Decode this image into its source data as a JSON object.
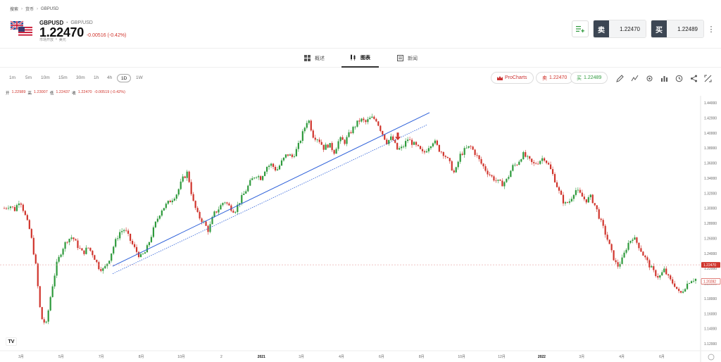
{
  "breadcrumb": {
    "items": [
      "搜索",
      "货币",
      "GBPUSD"
    ]
  },
  "header": {
    "symbol": "GBPUSD",
    "pair": "GBP/USD",
    "price": "1.22470",
    "change": "-0.00516 (-0.42%)",
    "market_status": "市场开放",
    "currency": "美元",
    "sell_label": "卖",
    "sell_price": "1.22470",
    "buy_label": "买",
    "buy_price": "1.22489",
    "icons": {
      "list": "list-add-icon",
      "more": "kebab-icon",
      "flag": "gb-us-flag-icon"
    }
  },
  "tabs": [
    {
      "label": "概述",
      "icon": "grid-icon"
    },
    {
      "label": "图表",
      "icon": "candles-icon"
    },
    {
      "label": "新闻",
      "icon": "news-icon"
    }
  ],
  "timeframes": [
    "1m",
    "5m",
    "10m",
    "15m",
    "30m",
    "1h",
    "4h",
    "1D",
    "1W"
  ],
  "active_timeframe": "1D",
  "toolbar": {
    "prochart_label": "ProCharts",
    "sell_label": "卖",
    "sell_price": "1.22470",
    "buy_label": "买",
    "buy_price": "1.22489",
    "tools": [
      "pencil-icon",
      "indicators-icon",
      "settings-icon",
      "chart-type-icon",
      "clock-icon",
      "share-icon",
      "fullscreen-icon"
    ]
  },
  "ohlc": {
    "open_label": "开",
    "open": "1.22989",
    "high_label": "高",
    "high": "1.23007",
    "low_label": "低",
    "low": "1.22437",
    "close_label": "收",
    "close": "1.22470",
    "change": "-0.00519 (-0.42%)"
  },
  "chart_data": {
    "type": "candlestick",
    "yticks": [
      "1.44000",
      "1.42000",
      "1.40000",
      "1.38000",
      "1.36000",
      "1.34000",
      "1.32000",
      "1.30000",
      "1.28000",
      "1.26000",
      "1.24000",
      "1.22000",
      "1.20000",
      "1.18000",
      "1.16000",
      "1.14000",
      "1.12000"
    ],
    "ylim": [
      1.12,
      1.44
    ],
    "xticks": [
      "3月",
      "5月",
      "7月",
      "8月",
      "10月",
      "2",
      "2021",
      "3月",
      "4月",
      "6月",
      "8月",
      "10月",
      "12月",
      "2022",
      "3月",
      "4月",
      "6月"
    ],
    "bold_xticks": [
      "2021",
      "2022"
    ],
    "current_price": "1.22470",
    "secondary_price": "1.20282",
    "colors": {
      "up": "#2e9a3c",
      "down": "#d0342c",
      "trend": "#2b5fd9"
    },
    "close_path": [
      1.3,
      1.304,
      1.298,
      1.312,
      1.29,
      1.268,
      1.225,
      1.155,
      1.145,
      1.19,
      1.225,
      1.245,
      1.258,
      1.262,
      1.25,
      1.24,
      1.248,
      1.238,
      1.222,
      1.218,
      1.232,
      1.252,
      1.268,
      1.272,
      1.258,
      1.245,
      1.235,
      1.242,
      1.262,
      1.282,
      1.298,
      1.305,
      1.312,
      1.32,
      1.338,
      1.348,
      1.31,
      1.29,
      1.282,
      1.27,
      1.292,
      1.3,
      1.31,
      1.302,
      1.296,
      1.31,
      1.322,
      1.335,
      1.345,
      1.34,
      1.355,
      1.358,
      1.35,
      1.362,
      1.372,
      1.368,
      1.38,
      1.4,
      1.42,
      1.396,
      1.392,
      1.38,
      1.385,
      1.375,
      1.392,
      1.388,
      1.4,
      1.41,
      1.418,
      1.414,
      1.42,
      1.418,
      1.402,
      1.388,
      1.394,
      1.378,
      1.38,
      1.392,
      1.386,
      1.38,
      1.372,
      1.382,
      1.39,
      1.378,
      1.372,
      1.36,
      1.345,
      1.37,
      1.378,
      1.382,
      1.372,
      1.36,
      1.35,
      1.342,
      1.336,
      1.332,
      1.338,
      1.355,
      1.36,
      1.372,
      1.365,
      1.358,
      1.362,
      1.368,
      1.356,
      1.34,
      1.32,
      1.305,
      1.31,
      1.325,
      1.318,
      1.31,
      1.315,
      1.3,
      1.28,
      1.262,
      1.24,
      1.222,
      1.232,
      1.252,
      1.262,
      1.252,
      1.238,
      1.226,
      1.215,
      1.208,
      1.218,
      1.205,
      1.198,
      1.185,
      1.196,
      1.205,
      1.206
    ]
  }
}
